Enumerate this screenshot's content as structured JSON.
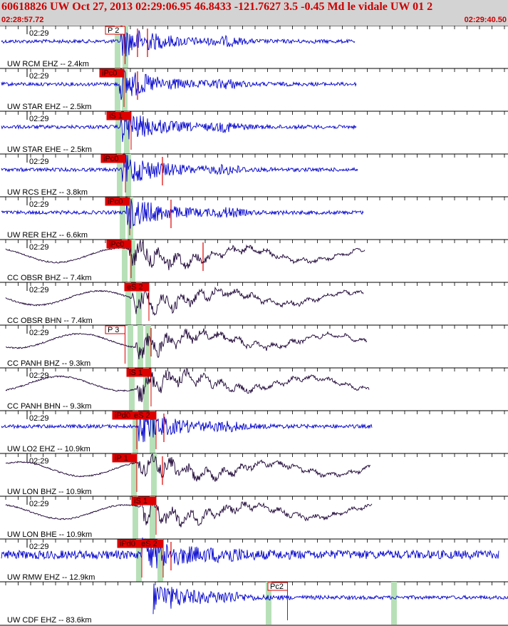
{
  "header": {
    "title": "60618826 UW Oct 27, 2013 02:29:06.95   46.8433 -121.7627  3.5 -0.45 Md le vidale UW 01   2",
    "start_time": "02:28:57.72",
    "end_time": "02:29:40.50"
  },
  "colors": {
    "header_bg": "#d3d3d3",
    "header_text": "#cc0000",
    "uw_trace": "#0000cc",
    "cc_trace": "#1a0033",
    "pick_box": "#dd0000",
    "pick_highlight": "#b8e0b8"
  },
  "traces": [
    {
      "name": "UW RCM EHZ -- 2.4km",
      "time": "02:29",
      "type": "uw",
      "picks": [
        {
          "label": "P 2",
          "style": "outline",
          "green": true
        }
      ]
    },
    {
      "name": "UW STAR EHZ -- 2.5km",
      "time": "02:29",
      "type": "uw",
      "picks": [
        {
          "label": "iPc0",
          "style": "filled",
          "green": true
        }
      ]
    },
    {
      "name": "UW STAR EHE -- 2.5km",
      "time": "02:29",
      "type": "uw",
      "picks": [
        {
          "label": "iS 1",
          "style": "filled",
          "green": true
        }
      ]
    },
    {
      "name": "UW RCS EHZ -- 3.8km",
      "time": "02:29",
      "type": "uw",
      "picks": [
        {
          "label": "iPc0",
          "style": "filled",
          "green": true
        }
      ]
    },
    {
      "name": "UW RER EHZ -- 6.6km",
      "time": "02:29",
      "type": "uw",
      "picks": [
        {
          "label": "iPc0",
          "style": "filled",
          "green": true
        }
      ]
    },
    {
      "name": "CC OBSR BHZ -- 7.4km",
      "time": "02:29",
      "type": "cc",
      "picks": [
        {
          "label": "iPc0",
          "style": "filled",
          "green": true
        }
      ]
    },
    {
      "name": "CC OBSR BHN -- 7.4km",
      "time": "02:29",
      "type": "cc",
      "picks": [
        {
          "label": "eS 2",
          "style": "filled",
          "green": true
        }
      ]
    },
    {
      "name": "CC PANH BHZ -- 9.3km",
      "time": "02:29",
      "type": "cc",
      "picks": [
        {
          "label": "P 3",
          "style": "outline",
          "green": true
        }
      ]
    },
    {
      "name": "CC PANH BHN -- 9.3km",
      "time": "02:29",
      "type": "cc",
      "picks": [
        {
          "label": "iS 1",
          "style": "filled",
          "green": true
        }
      ]
    },
    {
      "name": "UW LO2 EHZ -- 10.9km",
      "time": "02:29",
      "type": "uw",
      "picks": [
        {
          "label": "iPd0",
          "style": "filled",
          "green": true
        },
        {
          "label": "eS 2",
          "style": "filled",
          "green": true
        }
      ]
    },
    {
      "name": "UW LON BHZ -- 10.9km",
      "time": "02:29",
      "type": "cc",
      "picks": [
        {
          "label": "iP 1",
          "style": "filled",
          "green": true
        }
      ]
    },
    {
      "name": "UW LON BHE -- 10.9km",
      "time": "02:29",
      "type": "cc",
      "picks": [
        {
          "label": "iS 1",
          "style": "filled",
          "green": true
        }
      ]
    },
    {
      "name": "UW RMW EHZ -- 12.9km",
      "time": "02:29",
      "type": "uw",
      "picks": [
        {
          "label": "iPd0",
          "style": "filled",
          "green": true
        },
        {
          "label": "eS 2",
          "style": "filled",
          "green": true
        }
      ]
    },
    {
      "name": "UW CDF EHZ -- 83.6km",
      "time": "",
      "type": "uw",
      "picks": [
        {
          "label": "Pc2",
          "style": "outline",
          "green": true
        }
      ]
    }
  ]
}
